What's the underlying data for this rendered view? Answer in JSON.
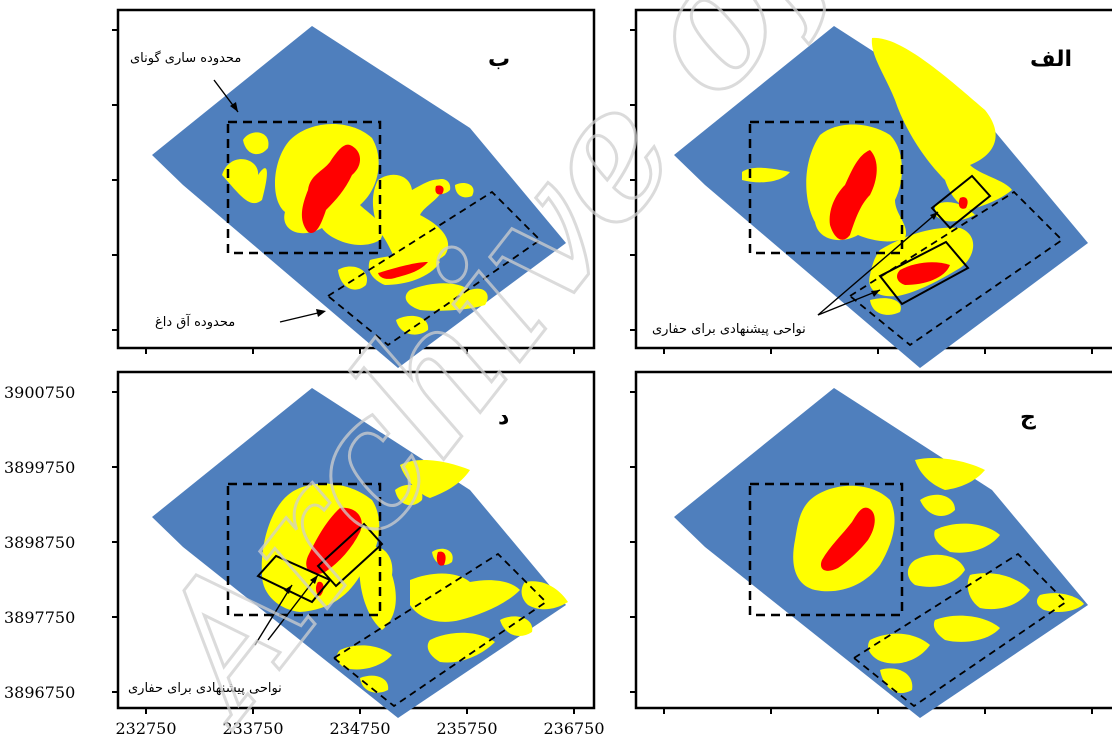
{
  "panels": {
    "alef": {
      "letter": "الف",
      "annotations": [
        "نواحی پیشنهادی برای حفاری"
      ]
    },
    "be": {
      "letter": "ب",
      "annotations": [
        "محدوده ساری گونای",
        "محدوده آق داغ"
      ]
    },
    "jim": {
      "letter": "ج"
    },
    "dal": {
      "letter": "د",
      "annotations": [
        "نواحی پیشنهادی برای حفاری"
      ]
    }
  },
  "axes": {
    "x_ticks": [
      "232750",
      "233750",
      "234750",
      "235750",
      "236750"
    ],
    "y_ticks": [
      "3900750",
      "3899750",
      "3898750",
      "3897750",
      "3896750"
    ]
  },
  "legend_colors": {
    "background": "#4f7fbd",
    "moderate": "#ffff00",
    "high": "#ff0000"
  },
  "watermark": "Archive of SID"
}
